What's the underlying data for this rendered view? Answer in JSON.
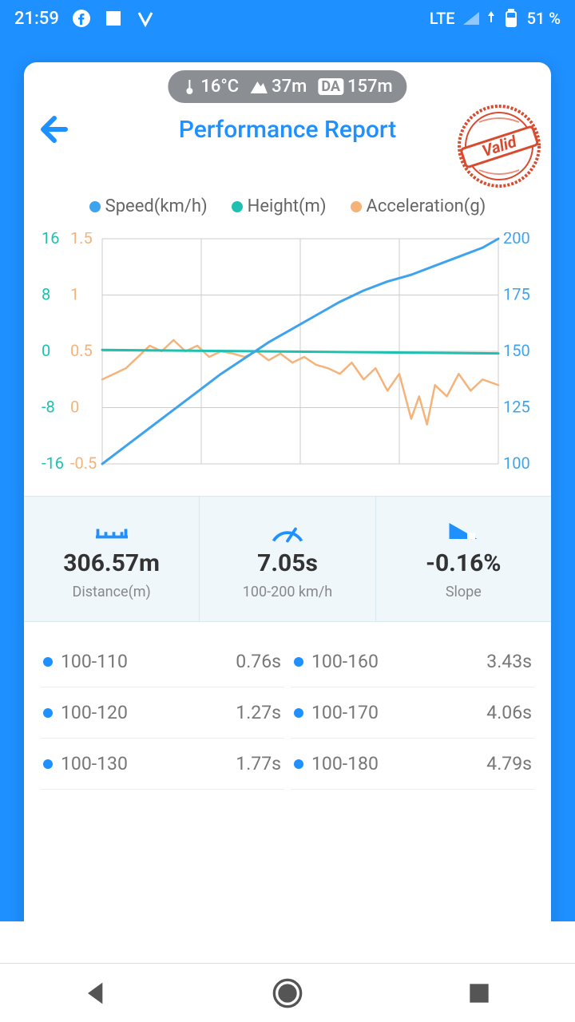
{
  "status": {
    "time": "21:59",
    "network": "LTE",
    "battery": "51 %"
  },
  "pill": {
    "temp": "16°C",
    "altitude": "37m",
    "da_label": "DA",
    "da_value": "157m"
  },
  "title": "Performance Report",
  "stamp_text": "Valid",
  "stamp_color": "#d84b2f",
  "legend": [
    {
      "label": "Speed(km/h)",
      "color": "#3ea3ef"
    },
    {
      "label": "Height(m)",
      "color": "#1fc0b0"
    },
    {
      "label": "Acceleration(g)",
      "color": "#f5b37a"
    }
  ],
  "chart": {
    "bg": "#ffffff",
    "grid_color": "#cccccc",
    "axis_right": {
      "ticks": [
        "200",
        "175",
        "150",
        "125",
        "100"
      ],
      "color": "#3ea3ef"
    },
    "axis_left_height": {
      "ticks": [
        "16",
        "8",
        "0",
        "-8",
        "-16"
      ],
      "color": "#1fc0b0"
    },
    "axis_left_accel": {
      "ticks": [
        "1.5",
        "1",
        "0.5",
        "0",
        "-0.5"
      ],
      "color": "#f5b37a"
    },
    "speed": {
      "color": "#3ea3ef",
      "width": 3,
      "points": [
        [
          0,
          100
        ],
        [
          6,
          108
        ],
        [
          12,
          116
        ],
        [
          18,
          124
        ],
        [
          24,
          132
        ],
        [
          30,
          140
        ],
        [
          36,
          147
        ],
        [
          42,
          154
        ],
        [
          48,
          160
        ],
        [
          54,
          166
        ],
        [
          60,
          172
        ],
        [
          66,
          177
        ],
        [
          72,
          181
        ],
        [
          78,
          184
        ],
        [
          84,
          188
        ],
        [
          90,
          192
        ],
        [
          96,
          196
        ],
        [
          100,
          200
        ]
      ]
    },
    "height": {
      "color": "#1fc0b0",
      "width": 3,
      "points": [
        [
          0,
          0.2
        ],
        [
          20,
          0.1
        ],
        [
          40,
          0
        ],
        [
          60,
          -0.1
        ],
        [
          80,
          -0.2
        ],
        [
          100,
          -0.3
        ]
      ]
    },
    "accel": {
      "color": "#f5b37a",
      "width": 2.5,
      "points": [
        [
          0,
          0.25
        ],
        [
          3,
          0.3
        ],
        [
          6,
          0.35
        ],
        [
          9,
          0.45
        ],
        [
          12,
          0.55
        ],
        [
          15,
          0.5
        ],
        [
          18,
          0.6
        ],
        [
          21,
          0.5
        ],
        [
          24,
          0.55
        ],
        [
          27,
          0.45
        ],
        [
          30,
          0.5
        ],
        [
          33,
          0.48
        ],
        [
          36,
          0.45
        ],
        [
          39,
          0.5
        ],
        [
          42,
          0.42
        ],
        [
          45,
          0.48
        ],
        [
          48,
          0.4
        ],
        [
          51,
          0.45
        ],
        [
          54,
          0.38
        ],
        [
          57,
          0.35
        ],
        [
          60,
          0.3
        ],
        [
          63,
          0.4
        ],
        [
          66,
          0.25
        ],
        [
          69,
          0.35
        ],
        [
          72,
          0.15
        ],
        [
          75,
          0.3
        ],
        [
          78,
          -0.1
        ],
        [
          80,
          0.1
        ],
        [
          82,
          -0.15
        ],
        [
          84,
          0.2
        ],
        [
          87,
          0.1
        ],
        [
          90,
          0.3
        ],
        [
          93,
          0.15
        ],
        [
          96,
          0.25
        ],
        [
          100,
          0.2
        ]
      ]
    }
  },
  "metrics": [
    {
      "icon": "ruler",
      "value": "306.57m",
      "label": "Distance(m)"
    },
    {
      "icon": "gauge",
      "value": "7.05s",
      "label": "100-200 km/h"
    },
    {
      "icon": "slope",
      "value": "-0.16%",
      "label": "Slope"
    }
  ],
  "splits": [
    {
      "range": "100-110",
      "time": "0.76s"
    },
    {
      "range": "100-160",
      "time": "3.43s"
    },
    {
      "range": "100-120",
      "time": "1.27s"
    },
    {
      "range": "100-170",
      "time": "4.06s"
    },
    {
      "range": "100-130",
      "time": "1.77s"
    },
    {
      "range": "100-180",
      "time": "4.79s"
    }
  ]
}
